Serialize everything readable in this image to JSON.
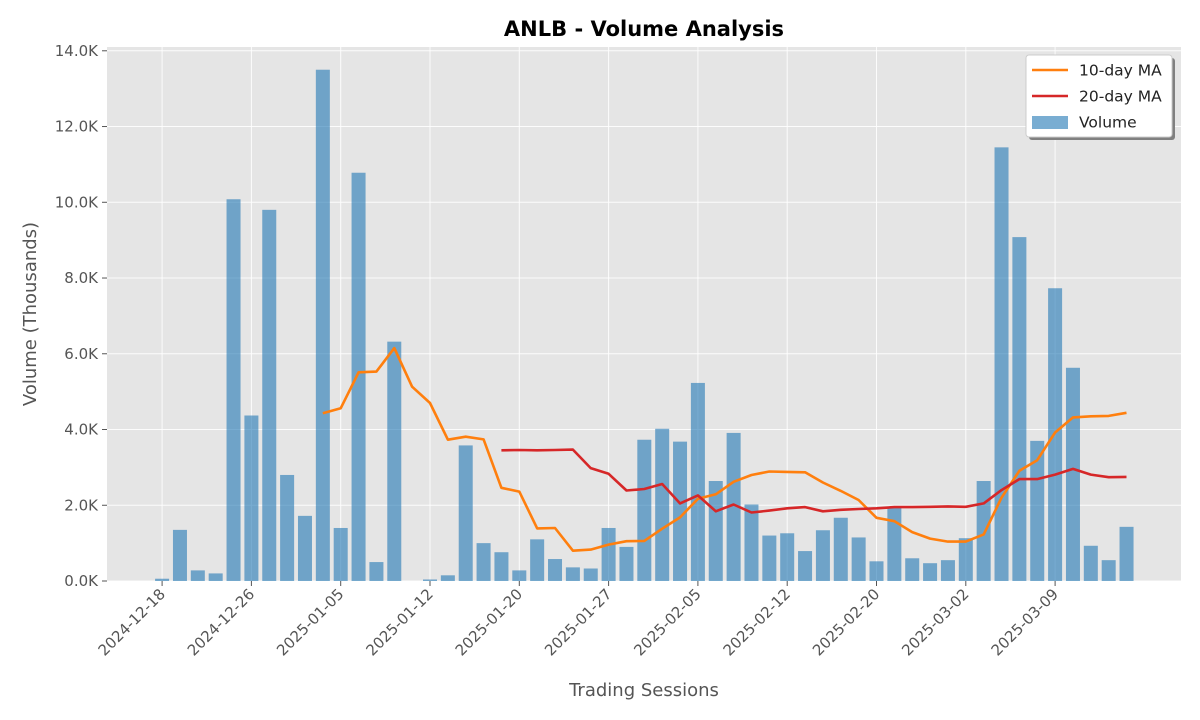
{
  "chart_data": {
    "type": "bar",
    "title": "ANLB - Volume Analysis",
    "xlabel": "Trading Sessions",
    "ylabel": "Volume (Thousands)",
    "ylim": [
      0,
      14100
    ],
    "y_ticks": [
      {
        "value": 0,
        "label": "0.0K"
      },
      {
        "value": 2000,
        "label": "2.0K"
      },
      {
        "value": 4000,
        "label": "4.0K"
      },
      {
        "value": 6000,
        "label": "6.0K"
      },
      {
        "value": 8000,
        "label": "8.0K"
      },
      {
        "value": 10000,
        "label": "10.0K"
      },
      {
        "value": 12000,
        "label": "12.0K"
      },
      {
        "value": 14000,
        "label": "14.0K"
      }
    ],
    "x_ticks": [
      "2024-12-18",
      "2024-12-26",
      "2025-01-05",
      "2025-01-12",
      "2025-01-20",
      "2025-01-27",
      "2025-02-05",
      "2025-02-12",
      "2025-02-20",
      "2025-03-02",
      "2025-03-09"
    ],
    "x_tick_index": [
      0,
      5,
      10,
      15,
      20,
      25,
      30,
      35,
      40,
      45,
      50
    ],
    "grid": true,
    "legend_position": "top-right",
    "series": [
      {
        "name": "Volume",
        "kind": "bar",
        "color": "#1f77b4",
        "values": [
          60,
          1350,
          280,
          200,
          10080,
          4370,
          9800,
          2800,
          1720,
          13500,
          1400,
          10780,
          500,
          6320,
          0,
          40,
          150,
          3580,
          1000,
          760,
          280,
          1100,
          580,
          360,
          330,
          1400,
          900,
          3730,
          4020,
          3680,
          5230,
          2640,
          3910,
          2020,
          1200,
          1260,
          790,
          1340,
          1670,
          1150,
          520,
          1930,
          600,
          470,
          550,
          1130,
          2640,
          11450,
          9080,
          3700,
          7730,
          5630,
          930,
          550,
          1430
        ]
      },
      {
        "name": "10-day MA",
        "kind": "line",
        "color": "#ff7f0e",
        "values": [
          null,
          null,
          null,
          null,
          null,
          null,
          null,
          null,
          null,
          4430,
          4560,
          5510,
          5530,
          6150,
          5130,
          4700,
          3730,
          3810,
          3740,
          2460,
          2360,
          1390,
          1400,
          800,
          830,
          960,
          1050,
          1060,
          1380,
          1680,
          2170,
          2290,
          2620,
          2800,
          2890,
          2880,
          2870,
          2600,
          2380,
          2140,
          1670,
          1580,
          1290,
          1120,
          1040,
          1040,
          1230,
          2200,
          2910,
          3190,
          3920,
          4320,
          4350,
          4360,
          4440
        ]
      },
      {
        "name": "20-day MA",
        "kind": "line",
        "color": "#d62728",
        "values": [
          null,
          null,
          null,
          null,
          null,
          null,
          null,
          null,
          null,
          null,
          null,
          null,
          null,
          null,
          null,
          null,
          null,
          null,
          null,
          3450,
          3460,
          3450,
          3460,
          3470,
          2980,
          2830,
          2390,
          2430,
          2560,
          2050,
          2260,
          1840,
          2020,
          1810,
          1860,
          1920,
          1950,
          1840,
          1880,
          1900,
          1920,
          1950,
          1950,
          1960,
          1970,
          1960,
          2050,
          2400,
          2690,
          2690,
          2810,
          2960,
          2810,
          2740,
          2750
        ]
      }
    ]
  }
}
